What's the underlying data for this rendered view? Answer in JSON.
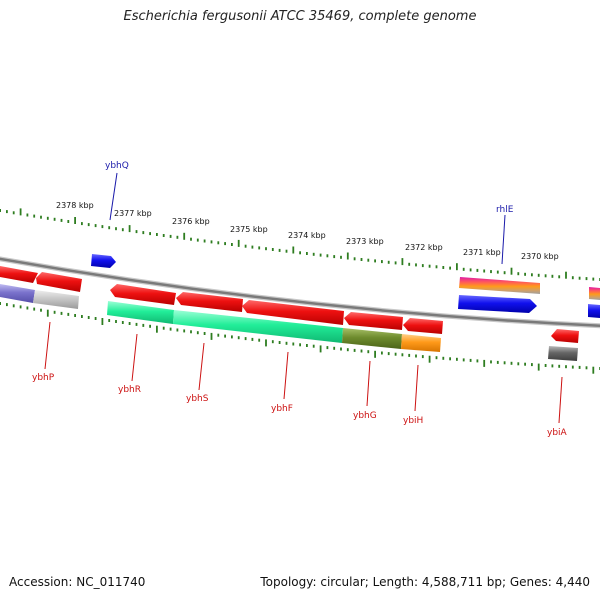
{
  "title": "Escherichia fergusonii ATCC 35469, complete genome",
  "footer": {
    "accession": "Accession: NC_011740",
    "summary": "Topology: circular; Length: 4,588,711 bp; Genes: 4,440"
  },
  "colors": {
    "backbone": "#808080",
    "tick": "#2e7d20",
    "forward_label": "#1a1aaa",
    "reverse_label": "#cc1111",
    "red_gene": "#ee1111",
    "blue_gene": "#1111ee",
    "green_gene": "#22ee99",
    "olive_gene": "#6e8c2e",
    "orange_gene": "#ff9a1a",
    "gray_gene": "#666666",
    "purple_gene": "#7a72cc",
    "magenta_gene": "#e01aa8"
  },
  "scale_ticks": [
    "2378 kbp",
    "2377 kbp",
    "2376 kbp",
    "2375 kbp",
    "2374 kbp",
    "2373 kbp",
    "2372 kbp",
    "2371 kbp",
    "2370 kbp"
  ],
  "forward_genes": [
    {
      "name": "ybhQ",
      "color": "blue"
    },
    {
      "name": "rhlE",
      "color": "blue"
    }
  ],
  "reverse_genes": [
    {
      "name": "ybhP",
      "color": "red"
    },
    {
      "name": "ybhR",
      "color": "red"
    },
    {
      "name": "ybhS",
      "color": "red"
    },
    {
      "name": "ybhF",
      "color": "red"
    },
    {
      "name": "ybhG",
      "color": "red"
    },
    {
      "name": "ybiH",
      "color": "red"
    },
    {
      "name": "ybiA",
      "color": "red"
    }
  ]
}
